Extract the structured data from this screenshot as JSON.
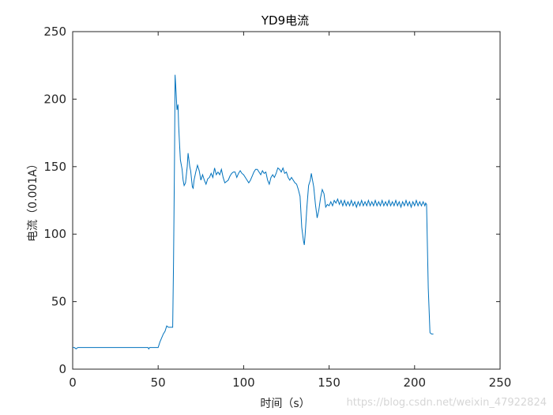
{
  "chart_data": {
    "type": "line",
    "title": "YD9电流",
    "xlabel": "时间（s）",
    "ylabel": "电流（0.001A）",
    "xlim": [
      0,
      250
    ],
    "ylim": [
      0,
      250
    ],
    "xticks": [
      0,
      50,
      100,
      150,
      200,
      250
    ],
    "yticks": [
      0,
      50,
      100,
      150,
      200,
      250
    ],
    "grid": false,
    "line_color": "#0072BD",
    "series": [
      {
        "points": [
          [
            0,
            16
          ],
          [
            1,
            16
          ],
          [
            2,
            15
          ],
          [
            3,
            16
          ],
          [
            10,
            16
          ],
          [
            20,
            16
          ],
          [
            30,
            16
          ],
          [
            40,
            16
          ],
          [
            44,
            16
          ],
          [
            44.5,
            15
          ],
          [
            45,
            16
          ],
          [
            47,
            16
          ],
          [
            49,
            16
          ],
          [
            50,
            16
          ],
          [
            51,
            20
          ],
          [
            52,
            23
          ],
          [
            53,
            26
          ],
          [
            54,
            28
          ],
          [
            55,
            32
          ],
          [
            56,
            31
          ],
          [
            57,
            31
          ],
          [
            58,
            31
          ],
          [
            58.5,
            31
          ],
          [
            59,
            80
          ],
          [
            59.6,
            160
          ],
          [
            59.9,
            218
          ],
          [
            60.5,
            205
          ],
          [
            61,
            192
          ],
          [
            61.6,
            196
          ],
          [
            62,
            180
          ],
          [
            62.5,
            167
          ],
          [
            63,
            155
          ],
          [
            64,
            148
          ],
          [
            64.6,
            140
          ],
          [
            65.2,
            136
          ],
          [
            66,
            138
          ],
          [
            67,
            150
          ],
          [
            67.5,
            160
          ],
          [
            68,
            155
          ],
          [
            68.5,
            150
          ],
          [
            69,
            147
          ],
          [
            70,
            135
          ],
          [
            70.5,
            134
          ],
          [
            71,
            140
          ],
          [
            72,
            146
          ],
          [
            73,
            151
          ],
          [
            74,
            147
          ],
          [
            75,
            140
          ],
          [
            76,
            144
          ],
          [
            77,
            140
          ],
          [
            78,
            137
          ],
          [
            79,
            141
          ],
          [
            80,
            142
          ],
          [
            81,
            145
          ],
          [
            82,
            142
          ],
          [
            83,
            149
          ],
          [
            84,
            144
          ],
          [
            85,
            146
          ],
          [
            86,
            144
          ],
          [
            87,
            148
          ],
          [
            88,
            142
          ],
          [
            89,
            138
          ],
          [
            90,
            139
          ],
          [
            91,
            140
          ],
          [
            92,
            143
          ],
          [
            93,
            145
          ],
          [
            94,
            146
          ],
          [
            95,
            146
          ],
          [
            96,
            142
          ],
          [
            97,
            145
          ],
          [
            98,
            147
          ],
          [
            99,
            145
          ],
          [
            100,
            144
          ],
          [
            101,
            142
          ],
          [
            102,
            140
          ],
          [
            103,
            138
          ],
          [
            104,
            140
          ],
          [
            105,
            143
          ],
          [
            106,
            146
          ],
          [
            107,
            148
          ],
          [
            108,
            148
          ],
          [
            109,
            146
          ],
          [
            110,
            144
          ],
          [
            111,
            147
          ],
          [
            112,
            145
          ],
          [
            113,
            146
          ],
          [
            114,
            140
          ],
          [
            115,
            137
          ],
          [
            116,
            142
          ],
          [
            117,
            144
          ],
          [
            118,
            142
          ],
          [
            119,
            145
          ],
          [
            120,
            149
          ],
          [
            121,
            148
          ],
          [
            122,
            146
          ],
          [
            123,
            149
          ],
          [
            124,
            145
          ],
          [
            125,
            146
          ],
          [
            126,
            142
          ],
          [
            127,
            140
          ],
          [
            128,
            142
          ],
          [
            129,
            140
          ],
          [
            130,
            138
          ],
          [
            131,
            137
          ],
          [
            132,
            133
          ],
          [
            133,
            128
          ],
          [
            134,
            105
          ],
          [
            135,
            95
          ],
          [
            135.5,
            92
          ],
          [
            136,
            100
          ],
          [
            137,
            120
          ],
          [
            138,
            136
          ],
          [
            139,
            140
          ],
          [
            139.6,
            145
          ],
          [
            140,
            142
          ],
          [
            141,
            135
          ],
          [
            142,
            122
          ],
          [
            143,
            112
          ],
          [
            144,
            118
          ],
          [
            145,
            127
          ],
          [
            146,
            133
          ],
          [
            147,
            130
          ],
          [
            148,
            120
          ],
          [
            149,
            122
          ],
          [
            150,
            121
          ],
          [
            151,
            124
          ],
          [
            152,
            121
          ],
          [
            153,
            125
          ],
          [
            154,
            123
          ],
          [
            155,
            126
          ],
          [
            156,
            122
          ],
          [
            157,
            125
          ],
          [
            158,
            121
          ],
          [
            159,
            125
          ],
          [
            160,
            121
          ],
          [
            161,
            124
          ],
          [
            162,
            121
          ],
          [
            163,
            125
          ],
          [
            164,
            121
          ],
          [
            165,
            124
          ],
          [
            166,
            120
          ],
          [
            167,
            124
          ],
          [
            168,
            121
          ],
          [
            169,
            125
          ],
          [
            170,
            121
          ],
          [
            171,
            124
          ],
          [
            172,
            121
          ],
          [
            173,
            125
          ],
          [
            174,
            121
          ],
          [
            175,
            124
          ],
          [
            176,
            121
          ],
          [
            177,
            125
          ],
          [
            178,
            121
          ],
          [
            179,
            124
          ],
          [
            180,
            121
          ],
          [
            181,
            125
          ],
          [
            182,
            121
          ],
          [
            183,
            124
          ],
          [
            184,
            121
          ],
          [
            185,
            125
          ],
          [
            186,
            121
          ],
          [
            187,
            124
          ],
          [
            188,
            121
          ],
          [
            189,
            125
          ],
          [
            190,
            121
          ],
          [
            191,
            124
          ],
          [
            192,
            120
          ],
          [
            193,
            124
          ],
          [
            194,
            121
          ],
          [
            195,
            125
          ],
          [
            196,
            121
          ],
          [
            197,
            124
          ],
          [
            198,
            120
          ],
          [
            199,
            124
          ],
          [
            200,
            121
          ],
          [
            201,
            125
          ],
          [
            202,
            121
          ],
          [
            203,
            124
          ],
          [
            204,
            121
          ],
          [
            205,
            124
          ],
          [
            206,
            121
          ],
          [
            206.5,
            123
          ],
          [
            207,
            122
          ],
          [
            208,
            60
          ],
          [
            209,
            27
          ],
          [
            210,
            26
          ],
          [
            211,
            26
          ]
        ]
      }
    ]
  },
  "watermark": "https://blog.csdn.net/weixin_47922824"
}
